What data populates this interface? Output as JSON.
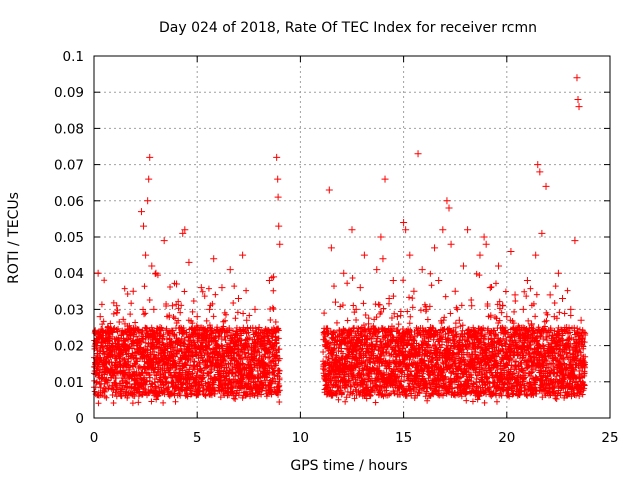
{
  "chart_data": {
    "type": "scatter",
    "title": "Day 024 of 2018, Rate Of TEC Index for receiver rcmn",
    "xlabel": "GPS time / hours",
    "ylabel": "ROTI / TECUs",
    "xlim": [
      0,
      25
    ],
    "ylim": [
      0,
      0.1
    ],
    "xticks": [
      0,
      5,
      10,
      15,
      20,
      25
    ],
    "xtick_labels": [
      "0",
      "5",
      "10",
      "15",
      "20",
      "25"
    ],
    "yticks": [
      0,
      0.01,
      0.02,
      0.03,
      0.04,
      0.05,
      0.06,
      0.07,
      0.08,
      0.09,
      0.1
    ],
    "ytick_labels": [
      "0",
      "0.01",
      "0.02",
      "0.03",
      "0.04",
      "0.05",
      "0.06",
      "0.07",
      "0.08",
      "0.09",
      "0.1"
    ],
    "grid": true,
    "marker": "+",
    "color": "#ff0000",
    "data_segments": [
      {
        "x_start": 0.0,
        "x_end": 9.0
      },
      {
        "x_start": 11.1,
        "x_end": 23.8
      }
    ],
    "series": [
      {
        "name": "ROTI",
        "points": [
          [
            0.1,
            0.015
          ],
          [
            0.2,
            0.04
          ],
          [
            0.3,
            0.028
          ],
          [
            0.5,
            0.012
          ],
          [
            0.7,
            0.022
          ],
          [
            0.9,
            0.009
          ],
          [
            1.1,
            0.031
          ],
          [
            1.3,
            0.018
          ],
          [
            1.5,
            0.026
          ],
          [
            1.7,
            0.011
          ],
          [
            1.9,
            0.035
          ],
          [
            2.1,
            0.02
          ],
          [
            2.3,
            0.057
          ],
          [
            2.4,
            0.053
          ],
          [
            2.5,
            0.045
          ],
          [
            2.6,
            0.06
          ],
          [
            2.65,
            0.066
          ],
          [
            2.7,
            0.072
          ],
          [
            2.8,
            0.042
          ],
          [
            2.9,
            0.03
          ],
          [
            3.0,
            0.04
          ],
          [
            3.2,
            0.025
          ],
          [
            3.4,
            0.049
          ],
          [
            3.6,
            0.015
          ],
          [
            3.8,
            0.031
          ],
          [
            4.0,
            0.037
          ],
          [
            4.2,
            0.021
          ],
          [
            4.3,
            0.051
          ],
          [
            4.4,
            0.052
          ],
          [
            4.6,
            0.043
          ],
          [
            4.8,
            0.017
          ],
          [
            5.0,
            0.028
          ],
          [
            5.2,
            0.036
          ],
          [
            5.4,
            0.022
          ],
          [
            5.6,
            0.03
          ],
          [
            5.8,
            0.044
          ],
          [
            6.0,
            0.012
          ],
          [
            6.2,
            0.036
          ],
          [
            6.4,
            0.024
          ],
          [
            6.6,
            0.041
          ],
          [
            6.8,
            0.018
          ],
          [
            7.0,
            0.033
          ],
          [
            7.2,
            0.045
          ],
          [
            7.4,
            0.027
          ],
          [
            7.6,
            0.014
          ],
          [
            7.8,
            0.03
          ],
          [
            8.0,
            0.025
          ],
          [
            8.2,
            0.02
          ],
          [
            8.5,
            0.038
          ],
          [
            8.7,
            0.039
          ],
          [
            8.85,
            0.072
          ],
          [
            8.9,
            0.066
          ],
          [
            8.92,
            0.061
          ],
          [
            8.95,
            0.053
          ],
          [
            9.0,
            0.048
          ],
          [
            11.2,
            0.015
          ],
          [
            11.4,
            0.063
          ],
          [
            11.5,
            0.047
          ],
          [
            11.7,
            0.032
          ],
          [
            11.9,
            0.024
          ],
          [
            12.1,
            0.04
          ],
          [
            12.3,
            0.019
          ],
          [
            12.5,
            0.052
          ],
          [
            12.7,
            0.03
          ],
          [
            12.9,
            0.036
          ],
          [
            13.1,
            0.045
          ],
          [
            13.3,
            0.026
          ],
          [
            13.5,
            0.02
          ],
          [
            13.7,
            0.041
          ],
          [
            13.9,
            0.05
          ],
          [
            14.0,
            0.044
          ],
          [
            14.1,
            0.066
          ],
          [
            14.3,
            0.033
          ],
          [
            14.5,
            0.038
          ],
          [
            14.7,
            0.028
          ],
          [
            14.9,
            0.022
          ],
          [
            15.0,
            0.054
          ],
          [
            15.1,
            0.052
          ],
          [
            15.3,
            0.045
          ],
          [
            15.5,
            0.035
          ],
          [
            15.7,
            0.073
          ],
          [
            15.9,
            0.041
          ],
          [
            16.1,
            0.03
          ],
          [
            16.3,
            0.025
          ],
          [
            16.5,
            0.047
          ],
          [
            16.7,
            0.038
          ],
          [
            16.9,
            0.052
          ],
          [
            17.1,
            0.06
          ],
          [
            17.2,
            0.058
          ],
          [
            17.3,
            0.048
          ],
          [
            17.5,
            0.035
          ],
          [
            17.7,
            0.027
          ],
          [
            17.9,
            0.042
          ],
          [
            18.1,
            0.052
          ],
          [
            18.3,
            0.031
          ],
          [
            18.5,
            0.024
          ],
          [
            18.7,
            0.045
          ],
          [
            18.9,
            0.05
          ],
          [
            19.0,
            0.048
          ],
          [
            19.2,
            0.036
          ],
          [
            19.4,
            0.022
          ],
          [
            19.6,
            0.042
          ],
          [
            19.8,
            0.031
          ],
          [
            20.0,
            0.028
          ],
          [
            20.2,
            0.046
          ],
          [
            20.4,
            0.034
          ],
          [
            20.6,
            0.024
          ],
          [
            20.8,
            0.03
          ],
          [
            21.0,
            0.038
          ],
          [
            21.2,
            0.026
          ],
          [
            21.4,
            0.045
          ],
          [
            21.5,
            0.07
          ],
          [
            21.6,
            0.068
          ],
          [
            21.7,
            0.051
          ],
          [
            21.9,
            0.064
          ],
          [
            22.1,
            0.034
          ],
          [
            22.3,
            0.028
          ],
          [
            22.5,
            0.04
          ],
          [
            22.7,
            0.033
          ],
          [
            22.9,
            0.025
          ],
          [
            23.1,
            0.03
          ],
          [
            23.3,
            0.049
          ],
          [
            23.4,
            0.094
          ],
          [
            23.45,
            0.088
          ],
          [
            23.5,
            0.086
          ],
          [
            23.6,
            0.027
          ],
          [
            23.7,
            0.015
          ]
        ]
      }
    ]
  }
}
